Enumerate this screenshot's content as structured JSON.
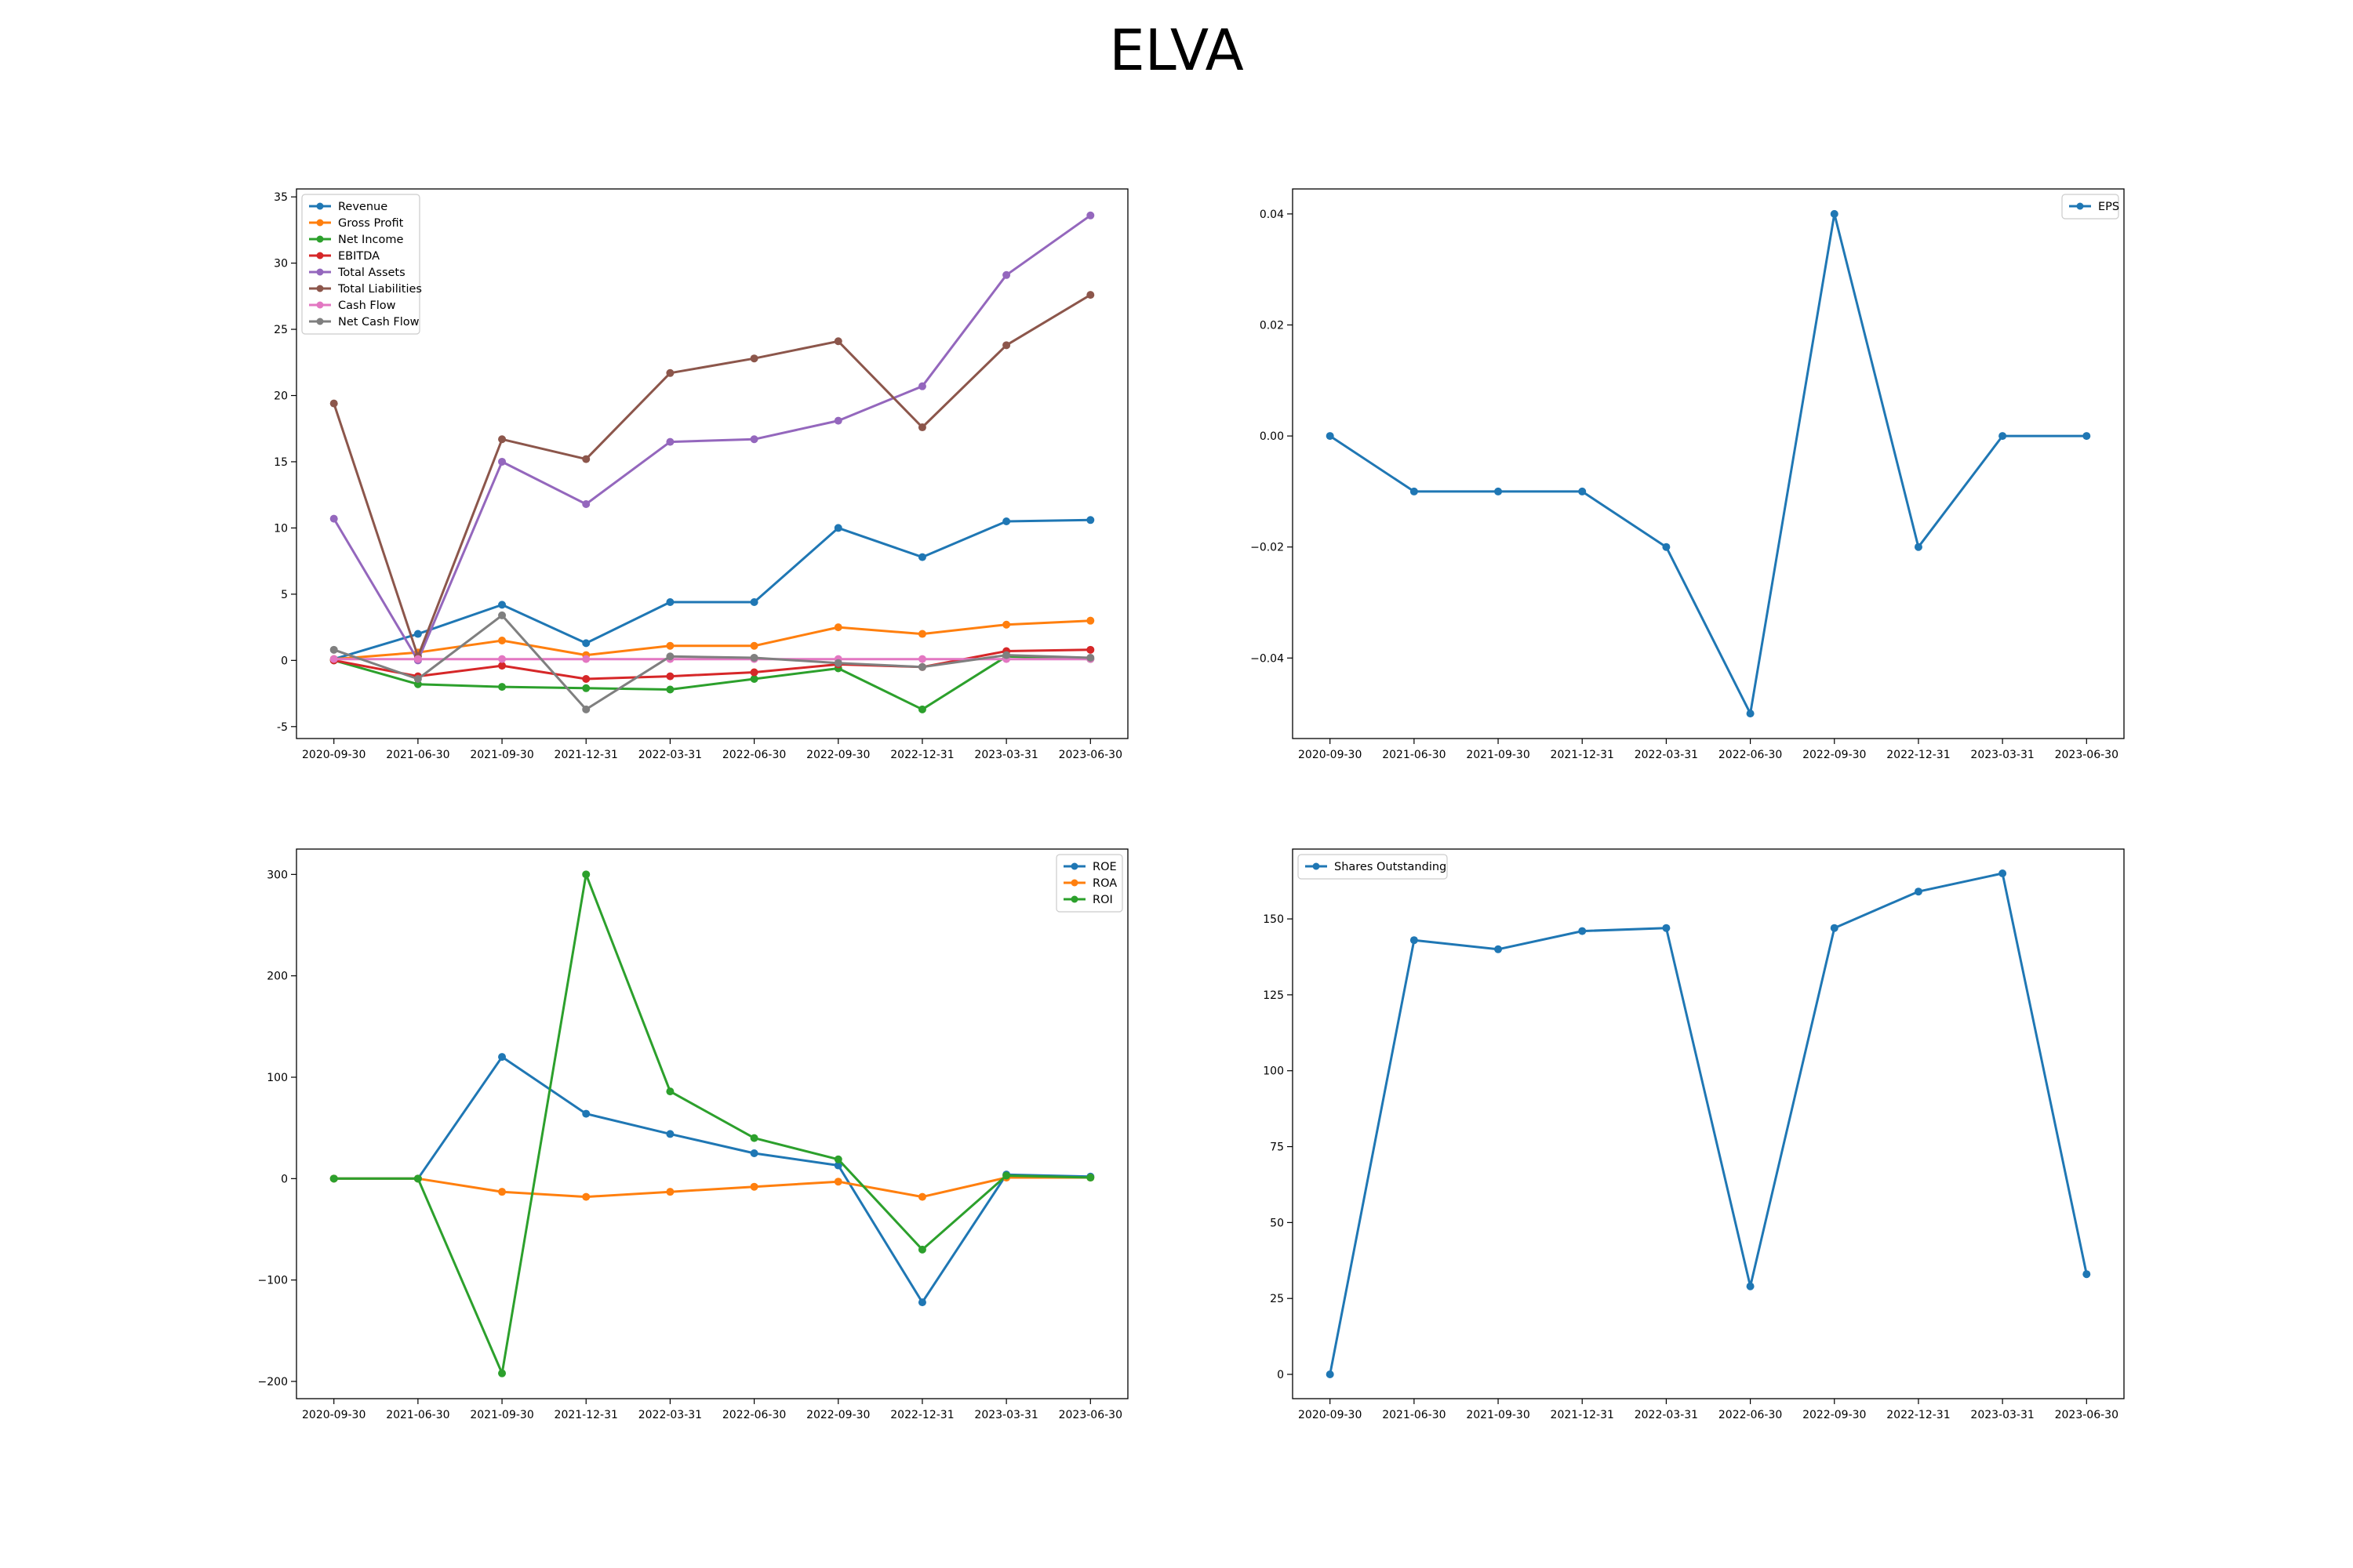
{
  "figure": {
    "title": "ELVA"
  },
  "chart_data": [
    {
      "type": "line",
      "title": "",
      "xlabel": "",
      "ylabel": "",
      "legend": "upper-left",
      "grid": false,
      "categories": [
        "2020-09-30",
        "2021-06-30",
        "2021-09-30",
        "2021-12-31",
        "2022-03-31",
        "2022-06-30",
        "2022-09-30",
        "2022-12-31",
        "2023-03-31",
        "2023-06-30"
      ],
      "ylim": [
        -5.9,
        35.6
      ],
      "yticks": [
        -5,
        0,
        5,
        10,
        15,
        20,
        25,
        30,
        35
      ],
      "series": [
        {
          "name": "Revenue",
          "color": "#1f77b4",
          "values": [
            0.1,
            2.0,
            4.2,
            1.3,
            4.4,
            4.4,
            10.0,
            7.8,
            10.5,
            10.6
          ]
        },
        {
          "name": "Gross Profit",
          "color": "#ff7f0e",
          "values": [
            0.1,
            0.6,
            1.5,
            0.4,
            1.1,
            1.1,
            2.5,
            2.0,
            2.7,
            3.0
          ]
        },
        {
          "name": "Net Income",
          "color": "#2ca02c",
          "values": [
            0.0,
            -1.8,
            -2.0,
            -2.1,
            -2.2,
            -1.4,
            -0.6,
            -3.7,
            0.3,
            0.1
          ]
        },
        {
          "name": "EBITDA",
          "color": "#d62728",
          "values": [
            0.0,
            -1.2,
            -0.4,
            -1.4,
            -1.2,
            -0.9,
            -0.3,
            -0.5,
            0.7,
            0.8
          ]
        },
        {
          "name": "Total Assets",
          "color": "#9467bd",
          "values": [
            10.7,
            0.0,
            15.0,
            11.8,
            16.5,
            16.7,
            18.1,
            20.7,
            29.1,
            33.6
          ]
        },
        {
          "name": "Total Liabilities",
          "color": "#8c564b",
          "values": [
            19.4,
            0.3,
            16.7,
            15.2,
            21.7,
            22.8,
            24.1,
            17.6,
            23.8,
            27.6
          ]
        },
        {
          "name": "Cash Flow",
          "color": "#e377c2",
          "values": [
            0.1,
            0.1,
            0.1,
            0.1,
            0.1,
            0.1,
            0.1,
            0.1,
            0.1,
            0.1
          ]
        },
        {
          "name": "Net Cash Flow",
          "color": "#7f7f7f",
          "values": [
            0.8,
            -1.4,
            3.4,
            -3.7,
            0.3,
            0.2,
            -0.2,
            -0.5,
            0.4,
            0.2
          ]
        }
      ]
    },
    {
      "type": "line",
      "title": "",
      "xlabel": "",
      "ylabel": "",
      "legend": "upper-right",
      "grid": false,
      "categories": [
        "2020-09-30",
        "2021-06-30",
        "2021-09-30",
        "2021-12-31",
        "2022-03-31",
        "2022-06-30",
        "2022-09-30",
        "2022-12-31",
        "2023-03-31",
        "2023-06-30"
      ],
      "ylim": [
        -0.0545,
        0.0445
      ],
      "yticks": [
        -0.04,
        -0.02,
        0.0,
        0.02,
        0.04
      ],
      "ytick_labels": [
        "−0.04",
        "−0.02",
        "0.00",
        "0.02",
        "0.04"
      ],
      "series": [
        {
          "name": "EPS",
          "color": "#1f77b4",
          "values": [
            0.0,
            -0.01,
            -0.01,
            -0.01,
            -0.02,
            -0.05,
            0.04,
            -0.02,
            0.0,
            0.0
          ]
        }
      ]
    },
    {
      "type": "line",
      "title": "",
      "xlabel": "",
      "ylabel": "",
      "legend": "upper-right",
      "grid": false,
      "categories": [
        "2020-09-30",
        "2021-06-30",
        "2021-09-30",
        "2021-12-31",
        "2022-03-31",
        "2022-06-30",
        "2022-09-30",
        "2022-12-31",
        "2023-03-31",
        "2023-06-30"
      ],
      "ylim": [
        -217,
        325
      ],
      "yticks": [
        -200,
        -100,
        0,
        100,
        200,
        300
      ],
      "ytick_labels": [
        "−200",
        "−100",
        "0",
        "100",
        "200",
        "300"
      ],
      "series": [
        {
          "name": "ROE",
          "color": "#1f77b4",
          "values": [
            0,
            0,
            120,
            64,
            44,
            25,
            13,
            -122,
            4,
            2
          ]
        },
        {
          "name": "ROA",
          "color": "#ff7f0e",
          "values": [
            0,
            0,
            -13,
            -18,
            -13,
            -8,
            -3,
            -18,
            1,
            1
          ]
        },
        {
          "name": "ROI",
          "color": "#2ca02c",
          "values": [
            0,
            0,
            -192,
            300,
            86,
            40,
            19,
            -70,
            3,
            1
          ]
        }
      ]
    },
    {
      "type": "line",
      "title": "",
      "xlabel": "",
      "ylabel": "",
      "legend": "upper-left",
      "grid": false,
      "categories": [
        "2020-09-30",
        "2021-06-30",
        "2021-09-30",
        "2021-12-31",
        "2022-03-31",
        "2022-06-30",
        "2022-09-30",
        "2022-12-31",
        "2023-03-31",
        "2023-06-30"
      ],
      "ylim": [
        -8,
        173
      ],
      "yticks": [
        0,
        25,
        50,
        75,
        100,
        125,
        150
      ],
      "series": [
        {
          "name": "Shares Outstanding",
          "color": "#1f77b4",
          "values": [
            0,
            143,
            140,
            146,
            147,
            29,
            147,
            159,
            165,
            33
          ]
        }
      ]
    }
  ]
}
